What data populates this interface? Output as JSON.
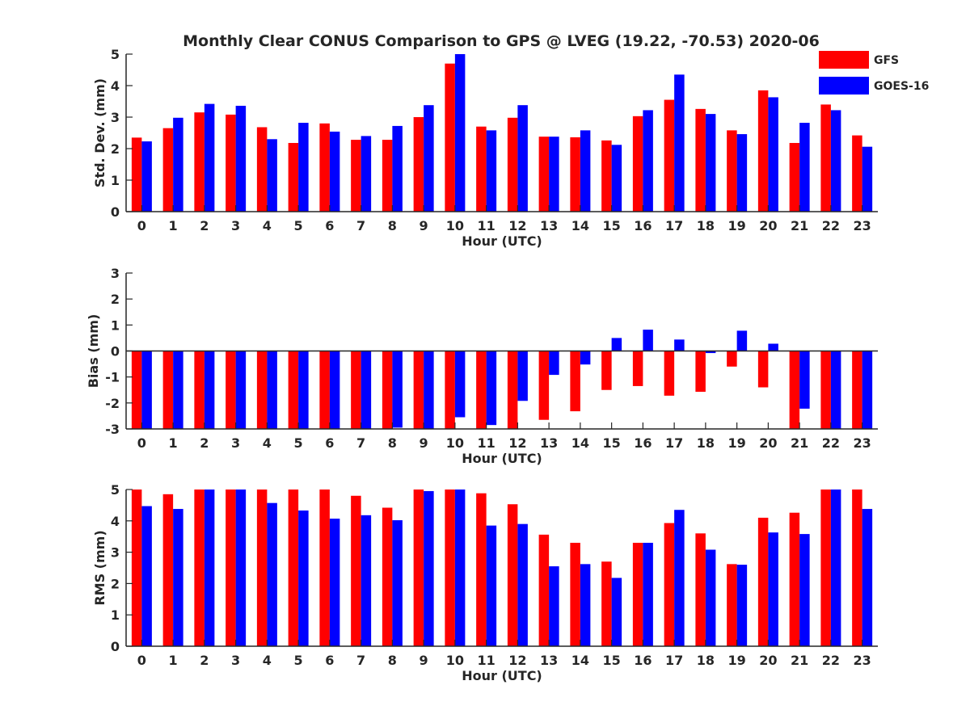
{
  "title": "Monthly Clear CONUS Comparison to GPS @ LVEG (19.22, -70.53) 2020-06",
  "legend": {
    "placement": "top-right",
    "items": [
      {
        "label": "GFS",
        "color": "#ff0000"
      },
      {
        "label": "GOES-16",
        "color": "#0000ff"
      }
    ]
  },
  "chart_data": [
    {
      "type": "bar",
      "xlabel": "Hour (UTC)",
      "ylabel": "Std. Dev. (mm)",
      "ylim": [
        0,
        5
      ],
      "yticks": [
        0,
        1,
        2,
        3,
        4,
        5
      ],
      "categories": [
        "0",
        "1",
        "2",
        "3",
        "4",
        "5",
        "6",
        "7",
        "8",
        "9",
        "10",
        "11",
        "12",
        "13",
        "14",
        "15",
        "16",
        "17",
        "18",
        "19",
        "20",
        "21",
        "22",
        "23"
      ],
      "series": [
        {
          "name": "GFS",
          "color": "#ff0000",
          "values": [
            2.35,
            2.65,
            3.15,
            3.08,
            2.68,
            2.18,
            2.8,
            2.28,
            2.28,
            3.0,
            4.7,
            2.7,
            2.98,
            2.38,
            2.36,
            2.26,
            3.03,
            3.55,
            3.26,
            2.58,
            3.85,
            2.18,
            3.4,
            2.42
          ]
        },
        {
          "name": "GOES-16",
          "color": "#0000ff",
          "values": [
            2.23,
            2.98,
            3.42,
            3.36,
            2.3,
            2.82,
            2.54,
            2.4,
            2.72,
            3.38,
            5.0,
            2.58,
            3.38,
            2.38,
            2.58,
            2.12,
            3.22,
            4.35,
            3.1,
            2.46,
            3.63,
            2.82,
            3.22,
            2.06
          ]
        }
      ],
      "grid": false
    },
    {
      "type": "bar",
      "xlabel": "Hour (UTC)",
      "ylabel": "Bias (mm)",
      "ylim": [
        -3,
        3
      ],
      "yticks": [
        -3,
        -2,
        -1,
        0,
        1,
        2,
        3
      ],
      "categories": [
        "0",
        "1",
        "2",
        "3",
        "4",
        "5",
        "6",
        "7",
        "8",
        "9",
        "10",
        "11",
        "12",
        "13",
        "14",
        "15",
        "16",
        "17",
        "18",
        "19",
        "20",
        "21",
        "22",
        "23"
      ],
      "series": [
        {
          "name": "GFS",
          "color": "#ff0000",
          "values": [
            -3.0,
            -3.0,
            -3.0,
            -3.0,
            -3.0,
            -3.0,
            -3.0,
            -3.0,
            -3.0,
            -3.0,
            -3.0,
            -3.0,
            -3.0,
            -2.65,
            -2.32,
            -1.5,
            -1.35,
            -1.72,
            -1.57,
            -0.6,
            -1.4,
            -3.0,
            -3.0,
            -3.0
          ]
        },
        {
          "name": "GOES-16",
          "color": "#0000ff",
          "values": [
            -3.0,
            -3.0,
            -3.0,
            -3.0,
            -3.0,
            -3.0,
            -3.0,
            -3.0,
            -2.95,
            -3.0,
            -2.55,
            -2.85,
            -1.92,
            -0.92,
            -0.52,
            0.5,
            0.82,
            0.44,
            -0.08,
            0.78,
            0.28,
            -2.22,
            -3.0,
            -3.0
          ]
        }
      ],
      "grid": false
    },
    {
      "type": "bar",
      "xlabel": "Hour (UTC)",
      "ylabel": "RMS (mm)",
      "ylim": [
        0,
        5
      ],
      "yticks": [
        0,
        1,
        2,
        3,
        4,
        5
      ],
      "categories": [
        "0",
        "1",
        "2",
        "3",
        "4",
        "5",
        "6",
        "7",
        "8",
        "9",
        "10",
        "11",
        "12",
        "13",
        "14",
        "15",
        "16",
        "17",
        "18",
        "19",
        "20",
        "21",
        "22",
        "23"
      ],
      "series": [
        {
          "name": "GFS",
          "color": "#ff0000",
          "values": [
            5.0,
            4.85,
            5.0,
            5.0,
            5.0,
            5.0,
            5.0,
            4.8,
            4.42,
            5.0,
            5.0,
            4.88,
            4.53,
            3.56,
            3.3,
            2.7,
            3.3,
            3.93,
            3.6,
            2.62,
            4.1,
            4.26,
            5.0,
            5.0
          ]
        },
        {
          "name": "GOES-16",
          "color": "#0000ff",
          "values": [
            4.47,
            4.38,
            5.0,
            5.0,
            4.57,
            4.33,
            4.07,
            4.18,
            4.02,
            4.95,
            5.0,
            3.85,
            3.9,
            2.55,
            2.62,
            2.18,
            3.3,
            4.35,
            3.08,
            2.6,
            3.63,
            3.58,
            5.0,
            4.38
          ]
        }
      ],
      "grid": false
    }
  ]
}
